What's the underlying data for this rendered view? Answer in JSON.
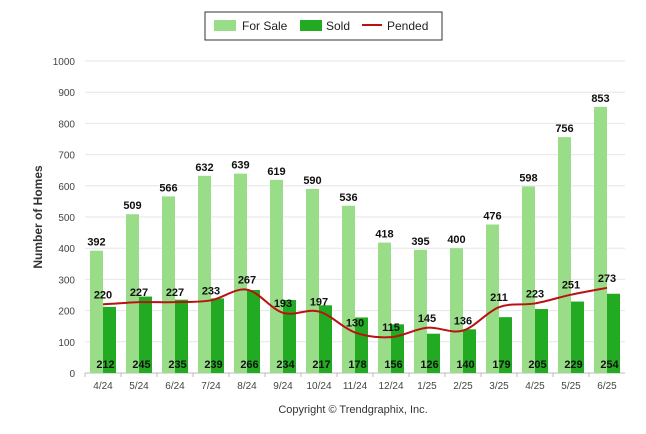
{
  "chart_data": {
    "type": "bar",
    "categories": [
      "4/24",
      "5/24",
      "6/24",
      "7/24",
      "8/24",
      "9/24",
      "10/24",
      "11/24",
      "12/24",
      "1/25",
      "2/25",
      "3/25",
      "4/25",
      "5/25",
      "6/25"
    ],
    "series": [
      {
        "name": "For Sale",
        "type": "bar",
        "color": "#99dd88",
        "values": [
          392,
          509,
          566,
          632,
          639,
          619,
          590,
          536,
          418,
          395,
          400,
          476,
          598,
          756,
          853
        ]
      },
      {
        "name": "Sold",
        "type": "bar",
        "color": "#22aa22",
        "values": [
          212,
          245,
          235,
          239,
          266,
          234,
          217,
          178,
          156,
          126,
          140,
          179,
          205,
          229,
          254
        ]
      },
      {
        "name": "Pended",
        "type": "line",
        "color": "#bb1111",
        "values": [
          220,
          227,
          227,
          233,
          267,
          193,
          197,
          130,
          115,
          145,
          136,
          211,
          223,
          251,
          273
        ]
      }
    ],
    "ylabel": "Number of Homes",
    "xlabel": "",
    "ylim": [
      0,
      1000
    ],
    "yticks": [
      0,
      100,
      200,
      300,
      400,
      500,
      600,
      700,
      800,
      900,
      1000
    ],
    "grid": true,
    "legend": "top-center",
    "credit": "Copyright © Trendgraphix, Inc."
  }
}
